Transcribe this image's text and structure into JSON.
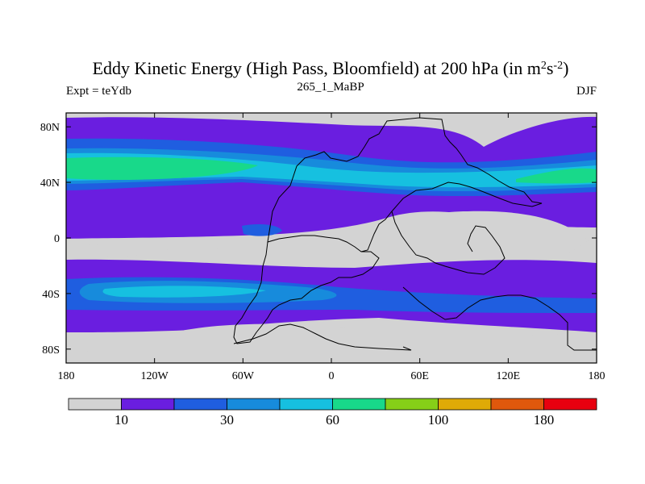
{
  "chart_data": {
    "type": "filled-contour-map",
    "title": "Eddy Kinetic Energy (High Pass, Bloomfield) at 200 hPa (in m",
    "title_units": {
      "base": "m",
      "exp1": "2",
      "mid": "s",
      "exp2": "-2",
      "close": ")"
    },
    "subtitle_center": "265_1_MaBP",
    "subtitle_left": "Expt = teYdb",
    "subtitle_right": "DJF",
    "x_axis": {
      "range": [
        -180,
        180
      ],
      "ticks": [
        -180,
        -120,
        -60,
        0,
        60,
        120,
        180
      ],
      "tick_labels": [
        "180",
        "120W",
        "60W",
        "0",
        "60E",
        "120E",
        "180"
      ]
    },
    "y_axis": {
      "range": [
        -90,
        90
      ],
      "ticks": [
        -80,
        -40,
        0,
        40,
        80
      ],
      "tick_labels": [
        "80S",
        "40S",
        "0",
        "40N",
        "80N"
      ]
    },
    "colorbar": {
      "colors": [
        "#d3d3d3",
        "#6a1ee0",
        "#1f5ee0",
        "#178bdc",
        "#16c0e0",
        "#18d98a",
        "#86cf18",
        "#dfaa07",
        "#e0580c",
        "#e8000f"
      ],
      "labels": [
        "10",
        "30",
        "60",
        "100",
        "180"
      ]
    },
    "field_bands": {
      "levels_ms2": [
        10,
        20,
        30,
        45,
        60,
        80
      ],
      "colors": [
        "#6a1ee0",
        "#1f5ee0",
        "#178bdc",
        "#16c0e0",
        "#18d98a"
      ],
      "note": "Zonal bands of eddy kinetic energy; maxima near 40N (Pacific) and 40S storm tracks"
    }
  }
}
